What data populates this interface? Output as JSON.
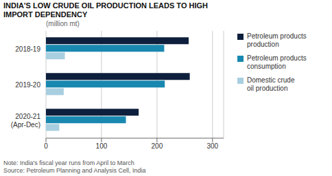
{
  "chart_data": {
    "type": "bar",
    "orientation": "horizontal",
    "title": "INDIA'S LOW CRUDE OIL PRODUCTION LEADS TO HIGH\nIMPORT DEPENDENCY",
    "subtitle": "(million mt)",
    "annotations": [
      "Note: India's fiscal year runs from April to March",
      "Source: Petroleum Planning and Analysis Cell, India"
    ],
    "categories": [
      "2018-19",
      "2019-20",
      "2020-21\n(Apr-Dec)"
    ],
    "series": [
      {
        "name": "Petroleum products\nproduction",
        "color": "#0d1f3c",
        "values": [
          257,
          259,
          167
        ]
      },
      {
        "name": "Petroleum products\nconsumption",
        "color": "#1888b0",
        "values": [
          213,
          214,
          144
        ]
      },
      {
        "name": "Domestic crude\noil production",
        "color": "#a8cfe0",
        "values": [
          34,
          32,
          24
        ]
      }
    ],
    "xlim": [
      0,
      320
    ],
    "xticks": [
      0,
      100,
      200,
      300
    ],
    "grid": true,
    "legend": "right"
  }
}
